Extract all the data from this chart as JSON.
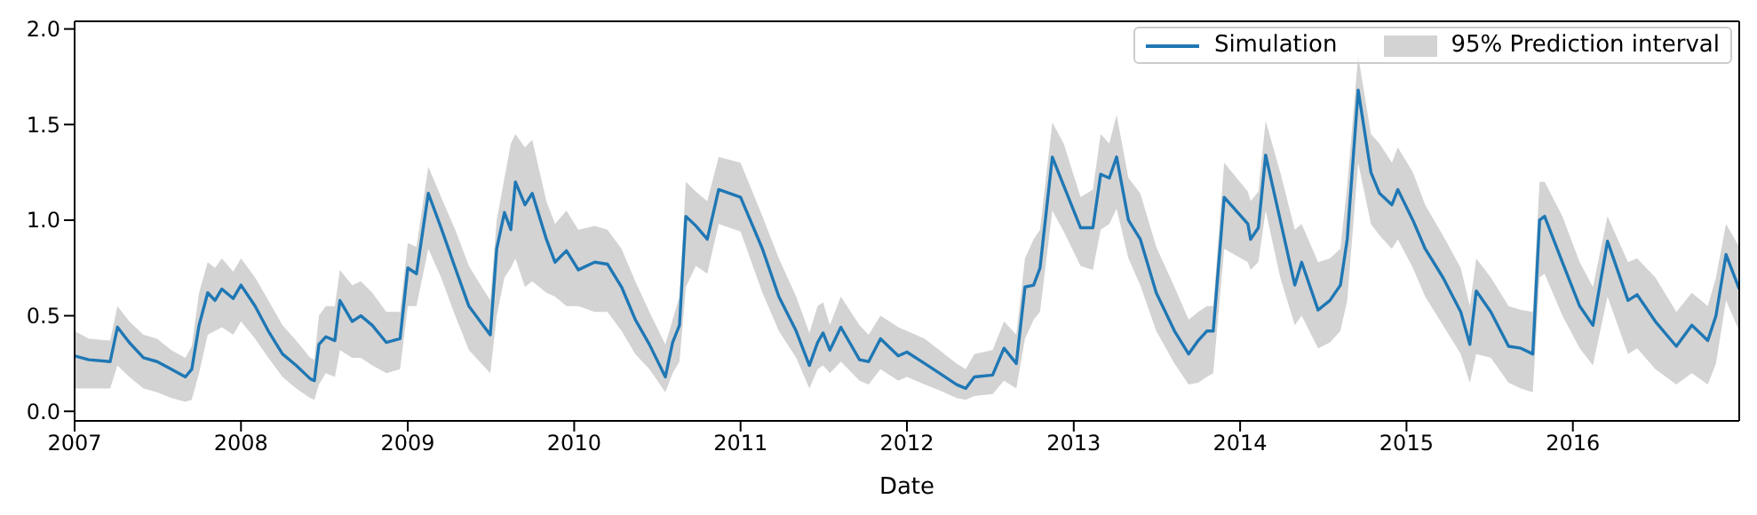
{
  "chart_data": {
    "type": "line",
    "xlabel": "Date",
    "annotations": [
      "95% Prediction interval"
    ],
    "x": [
      "2007-01-01",
      "2007-02-01",
      "2007-03-20",
      "2007-04-05",
      "2007-05-01",
      "2007-06-01",
      "2007-07-01",
      "2007-08-01",
      "2007-09-01",
      "2007-09-15",
      "2007-10-01",
      "2007-10-20",
      "2007-11-05",
      "2007-11-20",
      "2007-12-15",
      "2008-01-01",
      "2008-02-01",
      "2008-03-01",
      "2008-04-01",
      "2008-05-01",
      "2008-06-01",
      "2008-06-10",
      "2008-06-20",
      "2008-07-05",
      "2008-07-25",
      "2008-08-05",
      "2008-09-01",
      "2008-09-20",
      "2008-10-15",
      "2008-11-15",
      "2008-12-15",
      "2009-01-01",
      "2009-01-20",
      "2009-02-15",
      "2009-03-15",
      "2009-04-15",
      "2009-05-15",
      "2009-06-15",
      "2009-07-01",
      "2009-07-15",
      "2009-08-01",
      "2009-08-15",
      "2009-08-25",
      "2009-09-15",
      "2009-10-01",
      "2009-11-01",
      "2009-11-20",
      "2009-12-15",
      "2010-01-10",
      "2010-02-15",
      "2010-03-15",
      "2010-04-15",
      "2010-05-15",
      "2010-06-15",
      "2010-07-20",
      "2010-08-05",
      "2010-08-20",
      "2010-09-03",
      "2010-09-25",
      "2010-10-20",
      "2010-11-14",
      "2011-01-01",
      "2011-02-18",
      "2011-03-26",
      "2011-05-03",
      "2011-06-01",
      "2011-06-19",
      "2011-07-01",
      "2011-07-16",
      "2011-08-09",
      "2011-09-19",
      "2011-10-09",
      "2011-11-04",
      "2011-12-13",
      "2012-01-01",
      "2012-02-09",
      "2012-03-12",
      "2012-04-19",
      "2012-05-09",
      "2012-05-28",
      "2012-07-07",
      "2012-08-01",
      "2012-08-28",
      "2012-09-16",
      "2012-10-05",
      "2012-10-19",
      "2012-11-15",
      "2012-12-10",
      "2013-01-16",
      "2013-02-12",
      "2013-03-01",
      "2013-03-20",
      "2013-04-05",
      "2013-05-01",
      "2013-05-27",
      "2013-07-01",
      "2013-08-10",
      "2013-09-10",
      "2013-10-01",
      "2013-10-20",
      "2013-11-03",
      "2013-11-27",
      "2014-01-18",
      "2014-01-24",
      "2014-02-10",
      "2014-02-26",
      "2014-03-30",
      "2014-05-01",
      "2014-05-16",
      "2014-06-21",
      "2014-07-17",
      "2014-08-09",
      "2014-08-24",
      "2014-09-17",
      "2014-10-15",
      "2014-11-03",
      "2014-11-30",
      "2014-12-13",
      "2015-01-15",
      "2015-02-11",
      "2015-03-22",
      "2015-04-30",
      "2015-05-20",
      "2015-06-03",
      "2015-07-05",
      "2015-08-13",
      "2015-09-09",
      "2015-10-05",
      "2015-10-20",
      "2015-10-31",
      "2015-12-09",
      "2016-01-16",
      "2016-02-14",
      "2016-03-17",
      "2016-05-01",
      "2016-05-21",
      "2016-06-30",
      "2016-08-15",
      "2016-09-18",
      "2016-10-23",
      "2016-11-10",
      "2016-12-02",
      "2016-12-31"
    ],
    "series": [
      {
        "name": "Simulation",
        "color": "#1f77b4",
        "lower": [
          0.12,
          0.12,
          0.12,
          0.24,
          0.18,
          0.12,
          0.1,
          0.07,
          0.05,
          0.06,
          0.2,
          0.4,
          0.42,
          0.44,
          0.4,
          0.47,
          0.38,
          0.28,
          0.18,
          0.12,
          0.07,
          0.06,
          0.14,
          0.2,
          0.18,
          0.32,
          0.28,
          0.28,
          0.24,
          0.2,
          0.22,
          0.55,
          0.55,
          0.85,
          0.7,
          0.5,
          0.32,
          0.24,
          0.2,
          0.5,
          0.7,
          0.75,
          0.8,
          0.65,
          0.68,
          0.62,
          0.6,
          0.55,
          0.55,
          0.52,
          0.52,
          0.42,
          0.3,
          0.22,
          0.1,
          0.2,
          0.26,
          0.65,
          0.76,
          0.72,
          0.98,
          0.94,
          0.62,
          0.42,
          0.28,
          0.12,
          0.22,
          0.24,
          0.2,
          0.26,
          0.16,
          0.14,
          0.22,
          0.16,
          0.18,
          0.14,
          0.11,
          0.07,
          0.06,
          0.08,
          0.09,
          0.16,
          0.12,
          0.38,
          0.48,
          0.52,
          1.05,
          0.94,
          0.76,
          0.74,
          0.95,
          0.98,
          1.06,
          0.8,
          0.66,
          0.42,
          0.25,
          0.14,
          0.15,
          0.18,
          0.2,
          0.85,
          0.78,
          0.74,
          0.78,
          1.05,
          0.7,
          0.45,
          0.5,
          0.33,
          0.36,
          0.42,
          0.58,
          1.3,
          0.98,
          0.92,
          0.85,
          0.9,
          0.75,
          0.6,
          0.45,
          0.3,
          0.15,
          0.3,
          0.28,
          0.15,
          0.12,
          0.1,
          0.7,
          0.72,
          0.5,
          0.33,
          0.24,
          0.6,
          0.3,
          0.33,
          0.22,
          0.14,
          0.2,
          0.14,
          0.25,
          0.58,
          0.42
        ],
        "upper": [
          0.42,
          0.38,
          0.37,
          0.55,
          0.47,
          0.4,
          0.38,
          0.32,
          0.28,
          0.34,
          0.62,
          0.78,
          0.75,
          0.8,
          0.73,
          0.8,
          0.7,
          0.58,
          0.45,
          0.37,
          0.28,
          0.27,
          0.5,
          0.55,
          0.55,
          0.74,
          0.66,
          0.68,
          0.62,
          0.52,
          0.52,
          0.88,
          0.86,
          1.28,
          1.12,
          0.95,
          0.76,
          0.64,
          0.58,
          1.0,
          1.22,
          1.4,
          1.45,
          1.38,
          1.42,
          1.1,
          0.98,
          1.05,
          0.95,
          0.97,
          0.95,
          0.85,
          0.68,
          0.52,
          0.35,
          0.48,
          0.6,
          1.2,
          1.15,
          1.1,
          1.33,
          1.3,
          1.02,
          0.8,
          0.6,
          0.41,
          0.55,
          0.57,
          0.45,
          0.6,
          0.45,
          0.4,
          0.5,
          0.44,
          0.42,
          0.38,
          0.32,
          0.25,
          0.22,
          0.3,
          0.32,
          0.47,
          0.4,
          0.8,
          0.9,
          0.95,
          1.51,
          1.4,
          1.12,
          1.16,
          1.45,
          1.4,
          1.55,
          1.22,
          1.14,
          0.86,
          0.65,
          0.48,
          0.52,
          0.55,
          0.55,
          1.3,
          1.15,
          1.1,
          1.15,
          1.52,
          1.25,
          0.95,
          0.98,
          0.78,
          0.8,
          0.85,
          1.18,
          1.86,
          1.45,
          1.4,
          1.3,
          1.38,
          1.25,
          1.08,
          0.92,
          0.75,
          0.55,
          0.8,
          0.7,
          0.55,
          0.53,
          0.52,
          1.2,
          1.2,
          1.02,
          0.78,
          0.65,
          1.02,
          0.78,
          0.8,
          0.7,
          0.52,
          0.62,
          0.55,
          0.7,
          0.98,
          0.86
        ],
        "values": [
          0.29,
          0.27,
          0.26,
          0.44,
          0.36,
          0.28,
          0.26,
          0.22,
          0.18,
          0.22,
          0.45,
          0.62,
          0.58,
          0.64,
          0.59,
          0.66,
          0.55,
          0.42,
          0.3,
          0.24,
          0.17,
          0.16,
          0.35,
          0.39,
          0.37,
          0.58,
          0.47,
          0.5,
          0.45,
          0.36,
          0.38,
          0.75,
          0.72,
          1.14,
          0.96,
          0.75,
          0.55,
          0.45,
          0.4,
          0.85,
          1.04,
          0.95,
          1.2,
          1.08,
          1.14,
          0.9,
          0.78,
          0.84,
          0.74,
          0.78,
          0.77,
          0.65,
          0.48,
          0.35,
          0.18,
          0.36,
          0.45,
          1.02,
          0.97,
          0.9,
          1.16,
          1.12,
          0.85,
          0.6,
          0.42,
          0.24,
          0.36,
          0.41,
          0.32,
          0.44,
          0.27,
          0.26,
          0.38,
          0.29,
          0.31,
          0.25,
          0.2,
          0.14,
          0.12,
          0.18,
          0.19,
          0.33,
          0.25,
          0.65,
          0.66,
          0.75,
          1.33,
          1.18,
          0.96,
          0.96,
          1.24,
          1.22,
          1.33,
          1.0,
          0.9,
          0.62,
          0.42,
          0.3,
          0.37,
          0.42,
          0.42,
          1.12,
          0.98,
          0.9,
          0.96,
          1.34,
          1.0,
          0.66,
          0.78,
          0.53,
          0.58,
          0.66,
          0.9,
          1.68,
          1.25,
          1.14,
          1.08,
          1.16,
          1.0,
          0.85,
          0.7,
          0.52,
          0.35,
          0.63,
          0.52,
          0.34,
          0.33,
          0.3,
          1.0,
          1.02,
          0.78,
          0.55,
          0.45,
          0.89,
          0.58,
          0.61,
          0.47,
          0.34,
          0.45,
          0.37,
          0.5,
          0.82,
          0.64
        ]
      }
    ],
    "xlim": [
      "2007-01-01",
      "2016-12-31"
    ],
    "xticks": [
      "2007",
      "2008",
      "2009",
      "2010",
      "2011",
      "2012",
      "2013",
      "2014",
      "2015",
      "2016"
    ],
    "ylim": [
      -0.05,
      2.04
    ],
    "yticks": [
      {
        "value": 0,
        "label": "0.0"
      },
      {
        "value": 0.5,
        "label": "0.5"
      },
      {
        "value": 1,
        "label": "1.0"
      },
      {
        "value": 1.5,
        "label": "1.5"
      },
      {
        "value": 2,
        "label": "2.0"
      }
    ],
    "legend": "top right",
    "grid": false,
    "marker": "none",
    "line_style": "solid"
  }
}
